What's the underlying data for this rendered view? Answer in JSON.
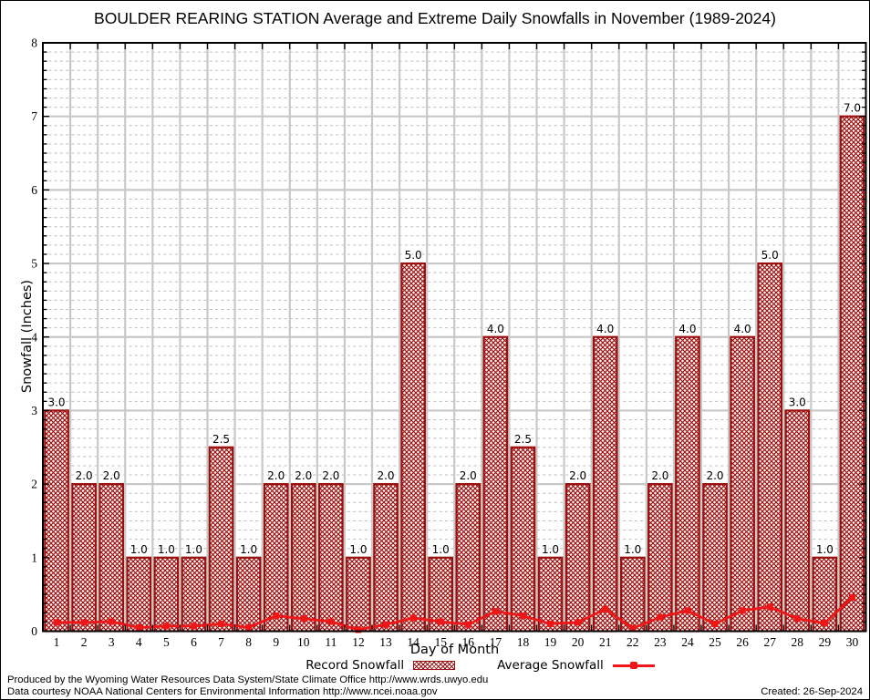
{
  "page": {
    "title": "BOULDER REARING STATION Average and Extreme Daily Snowfalls in November (1989-2024)",
    "footer_line1": "Produced by the Wyoming Water Resources Data System/State Climate Office http://www.wrds.uwyo.edu",
    "footer_line2": "Data courtesy NOAA National Centers for Environmental Information http://www.ncei.noaa.gov",
    "created": "Created: 26-Sep-2024"
  },
  "legend": {
    "record_label": "Record Snowfall",
    "average_label": "Average Snowfall"
  },
  "colors": {
    "bar_dark_red": "#9b0f0f",
    "line_red": "#ee1616",
    "grid_major": "#c8c8c8",
    "grid_minor": "#bdbdbd",
    "axis": "#000000"
  },
  "chart_data": {
    "type": "bar",
    "title": "BOULDER REARING STATION Average and Extreme Daily Snowfalls in November (1989-2024)",
    "xlabel": "Day of Month",
    "ylabel": "Snowfall (Inches)",
    "categories": [
      1,
      2,
      3,
      4,
      5,
      6,
      7,
      8,
      9,
      10,
      11,
      12,
      13,
      14,
      15,
      16,
      17,
      18,
      19,
      20,
      21,
      22,
      23,
      24,
      25,
      26,
      27,
      28,
      29,
      30
    ],
    "series": [
      {
        "name": "Record Snowfall",
        "type": "bar",
        "values": [
          3.0,
          2.0,
          2.0,
          1.0,
          1.0,
          1.0,
          2.5,
          1.0,
          2.0,
          2.0,
          2.0,
          1.0,
          2.0,
          5.0,
          1.0,
          2.0,
          4.0,
          2.5,
          1.0,
          2.0,
          4.0,
          1.0,
          2.0,
          4.0,
          2.0,
          4.0,
          5.0,
          3.0,
          1.0,
          7.0
        ]
      },
      {
        "name": "Average Snowfall",
        "type": "line",
        "values": [
          0.12,
          0.12,
          0.13,
          0.05,
          0.07,
          0.07,
          0.1,
          0.05,
          0.21,
          0.17,
          0.13,
          0.02,
          0.09,
          0.18,
          0.13,
          0.09,
          0.27,
          0.21,
          0.1,
          0.12,
          0.3,
          0.04,
          0.19,
          0.28,
          0.1,
          0.28,
          0.33,
          0.17,
          0.11,
          0.46
        ]
      }
    ],
    "bar_labels": [
      "3.0",
      "2.0",
      "2.0",
      "1.0",
      "1.0",
      "1.0",
      "2.5",
      "1.0",
      "2.0",
      "2.0",
      "2.0",
      "1.0",
      "2.0",
      "5.0",
      "1.0",
      "2.0",
      "4.0",
      "2.5",
      "1.0",
      "2.0",
      "4.0",
      "1.0",
      "2.0",
      "4.0",
      "2.0",
      "4.0",
      "5.0",
      "3.0",
      "1.0",
      "7.0"
    ],
    "ylim": [
      0,
      8
    ],
    "yticks": [
      0,
      1,
      2,
      3,
      4,
      5,
      6,
      7,
      8
    ],
    "grid": true,
    "legend_position": "bottom"
  }
}
